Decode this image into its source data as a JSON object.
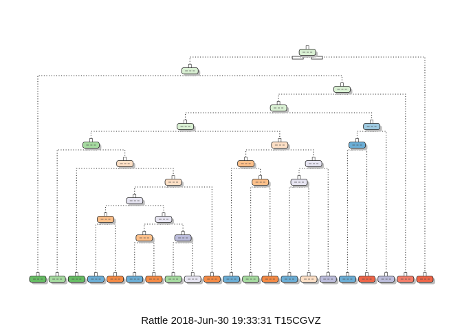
{
  "caption": "Rattle 2018-Jun-30 19:33:31 T15CGVZ",
  "class_colors": {
    "green": "#66BD63",
    "light-green": "#A6DBA0",
    "pale-green": "#D9F0D3",
    "blue": "#6BAED6",
    "light-blue": "#9ECAE1",
    "orange": "#F58A45",
    "light-orange": "#FDC08A",
    "pale-orange": "#FEE0C6",
    "red": "#EF6548",
    "salmon": "#F47E6A",
    "lavender": "#BCBDDC",
    "pale-lavender": "#E7E5F2"
  },
  "tree": {
    "nodes": [
      {
        "id": 1,
        "parent": null,
        "leaf": false,
        "fill": "pale-green"
      },
      {
        "id": 2,
        "parent": 1,
        "leaf": false,
        "fill": "pale-green"
      },
      {
        "id": 3,
        "parent": 1,
        "leaf": true,
        "fill": "red"
      },
      {
        "id": 4,
        "parent": 2,
        "leaf": true,
        "fill": "green"
      },
      {
        "id": 5,
        "parent": 2,
        "leaf": false,
        "fill": "pale-green"
      },
      {
        "id": 6,
        "parent": 5,
        "leaf": false,
        "fill": "pale-green"
      },
      {
        "id": 7,
        "parent": 5,
        "leaf": true,
        "fill": "salmon"
      },
      {
        "id": 8,
        "parent": 6,
        "leaf": false,
        "fill": "pale-green"
      },
      {
        "id": 9,
        "parent": 6,
        "leaf": false,
        "fill": "light-blue"
      },
      {
        "id": 10,
        "parent": 8,
        "leaf": false,
        "fill": "light-green"
      },
      {
        "id": 11,
        "parent": 8,
        "leaf": false,
        "fill": "pale-orange"
      },
      {
        "id": 12,
        "parent": 10,
        "leaf": true,
        "fill": "light-green"
      },
      {
        "id": 13,
        "parent": 10,
        "leaf": false,
        "fill": "pale-orange"
      },
      {
        "id": 14,
        "parent": 13,
        "leaf": true,
        "fill": "green"
      },
      {
        "id": 15,
        "parent": 13,
        "leaf": false,
        "fill": "pale-orange"
      },
      {
        "id": 16,
        "parent": 15,
        "leaf": false,
        "fill": "pale-lavender"
      },
      {
        "id": 17,
        "parent": 15,
        "leaf": true,
        "fill": "orange"
      },
      {
        "id": 18,
        "parent": 16,
        "leaf": false,
        "fill": "light-orange"
      },
      {
        "id": 19,
        "parent": 16,
        "leaf": false,
        "fill": "pale-lavender"
      },
      {
        "id": 20,
        "parent": 18,
        "leaf": true,
        "fill": "blue"
      },
      {
        "id": 21,
        "parent": 18,
        "leaf": true,
        "fill": "orange"
      },
      {
        "id": 22,
        "parent": 19,
        "leaf": false,
        "fill": "light-orange"
      },
      {
        "id": 23,
        "parent": 19,
        "leaf": false,
        "fill": "lavender"
      },
      {
        "id": 24,
        "parent": 22,
        "leaf": true,
        "fill": "blue"
      },
      {
        "id": 25,
        "parent": 22,
        "leaf": true,
        "fill": "orange"
      },
      {
        "id": 26,
        "parent": 23,
        "leaf": true,
        "fill": "light-green"
      },
      {
        "id": 27,
        "parent": 23,
        "leaf": true,
        "fill": "pale-lavender"
      },
      {
        "id": 28,
        "parent": 11,
        "leaf": false,
        "fill": "light-orange"
      },
      {
        "id": 29,
        "parent": 11,
        "leaf": false,
        "fill": "pale-lavender"
      },
      {
        "id": 30,
        "parent": 28,
        "leaf": true,
        "fill": "blue"
      },
      {
        "id": 31,
        "parent": 28,
        "leaf": false,
        "fill": "light-orange"
      },
      {
        "id": 32,
        "parent": 31,
        "leaf": true,
        "fill": "light-green"
      },
      {
        "id": 33,
        "parent": 31,
        "leaf": true,
        "fill": "orange"
      },
      {
        "id": 34,
        "parent": 29,
        "leaf": false,
        "fill": "pale-lavender"
      },
      {
        "id": 35,
        "parent": 29,
        "leaf": true,
        "fill": "lavender"
      },
      {
        "id": 36,
        "parent": 34,
        "leaf": true,
        "fill": "blue"
      },
      {
        "id": 37,
        "parent": 34,
        "leaf": true,
        "fill": "pale-orange"
      },
      {
        "id": 38,
        "parent": 9,
        "leaf": false,
        "fill": "blue"
      },
      {
        "id": 39,
        "parent": 9,
        "leaf": true,
        "fill": "lavender"
      },
      {
        "id": 40,
        "parent": 38,
        "leaf": true,
        "fill": "blue"
      },
      {
        "id": 41,
        "parent": 38,
        "leaf": true,
        "fill": "red"
      }
    ],
    "leaf_order": [
      4,
      12,
      14,
      20,
      21,
      24,
      25,
      26,
      27,
      17,
      30,
      32,
      33,
      36,
      37,
      35,
      40,
      41,
      39,
      7,
      3
    ]
  }
}
